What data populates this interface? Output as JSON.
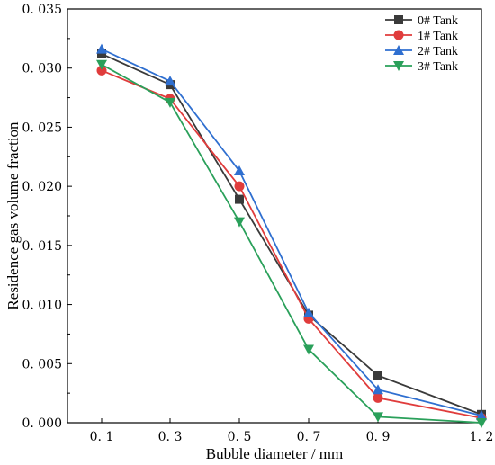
{
  "chart_data": {
    "type": "line",
    "x": [
      "0.1",
      "0.3",
      "0.5",
      "0.7",
      "0.9",
      "1.2"
    ],
    "x_tick_labels": [
      "0. 1",
      "0. 3",
      "0. 5",
      "0. 7",
      "0. 9",
      "1. 2"
    ],
    "y_tick_values": [
      0.0,
      0.005,
      0.01,
      0.015,
      0.02,
      0.025,
      0.03,
      0.035
    ],
    "y_tick_labels": [
      "0. 000",
      "0. 005",
      "0. 010",
      "0. 015",
      "0. 020",
      "0. 025",
      "0. 030",
      "0. 035"
    ],
    "ylim": [
      0,
      0.035
    ],
    "xlabel": "Bubble diameter / mm",
    "ylabel": "Residence gas volume fraction",
    "legend_position": "top-right",
    "grid": false,
    "series": [
      {
        "name": "0# Tank",
        "marker": "square",
        "color": "#3a3a3a",
        "values": [
          0.0312,
          0.0286,
          0.0189,
          0.0091,
          0.004,
          0.0007
        ]
      },
      {
        "name": "1# Tank",
        "marker": "circle",
        "color": "#e03c3c",
        "values": [
          0.0298,
          0.0274,
          0.02,
          0.0088,
          0.0021,
          0.0004
        ]
      },
      {
        "name": "2# Tank",
        "marker": "triangle-up",
        "color": "#2f6fd0",
        "values": [
          0.0316,
          0.0289,
          0.0213,
          0.0093,
          0.0028,
          0.0006
        ]
      },
      {
        "name": "3# Tank",
        "marker": "triangle-down",
        "color": "#2aa05a",
        "values": [
          0.0303,
          0.0271,
          0.017,
          0.0062,
          0.0005,
          0.0
        ]
      }
    ]
  }
}
